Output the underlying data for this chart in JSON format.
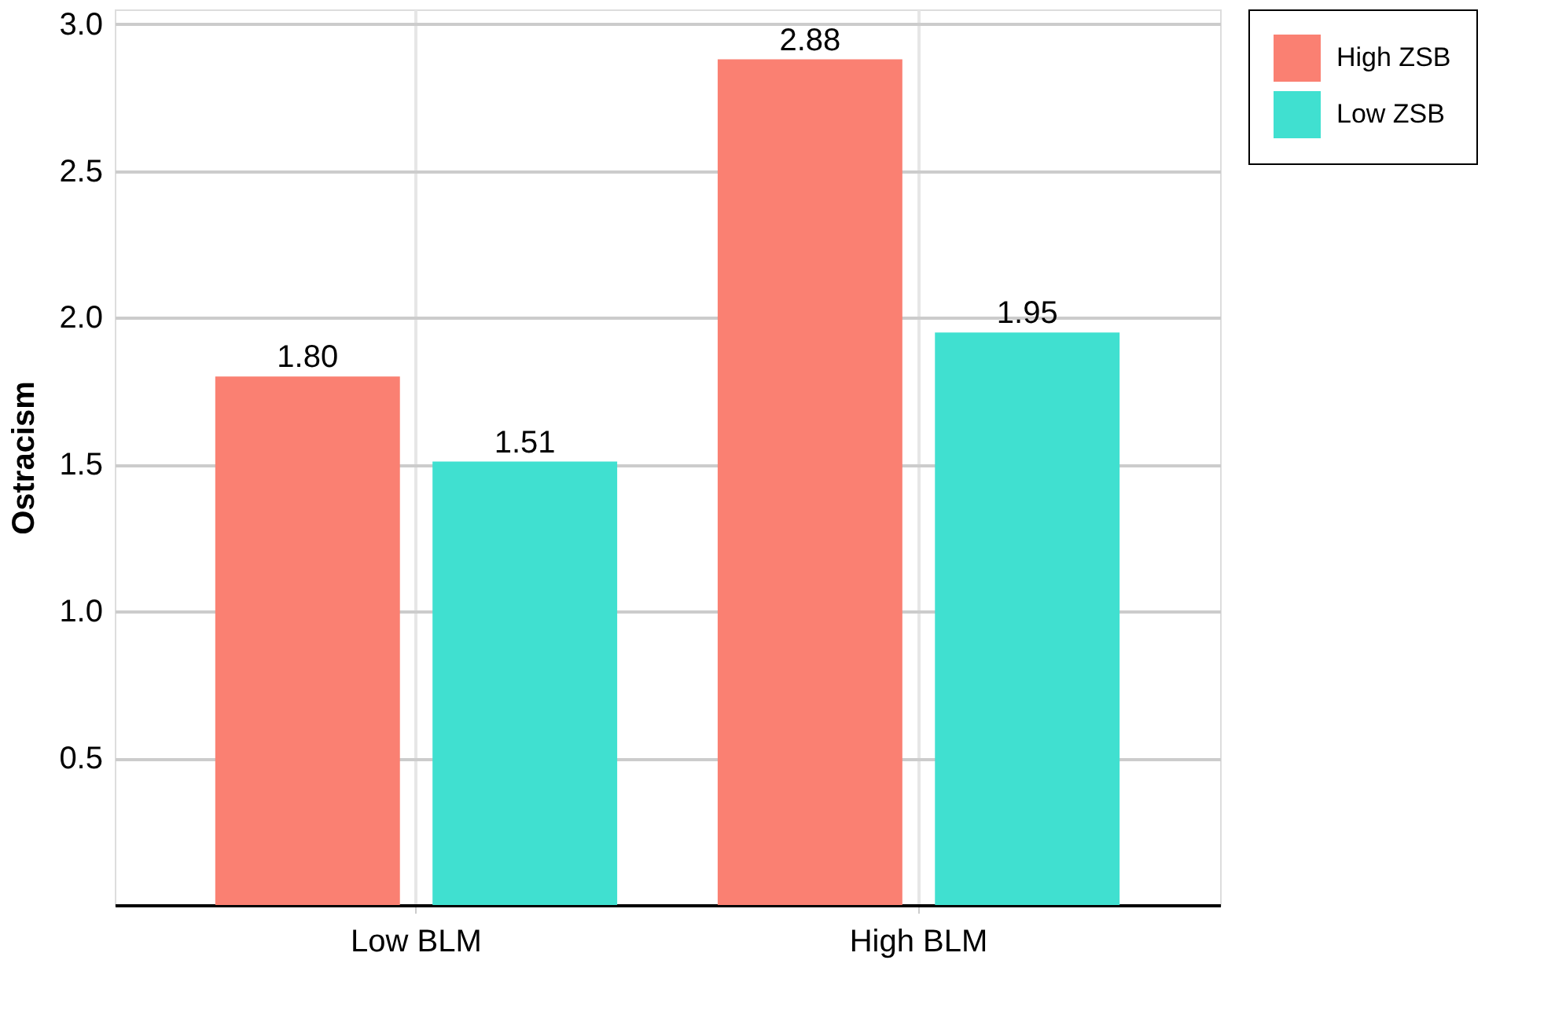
{
  "chart_data": {
    "type": "bar",
    "ylabel": "Ostracism",
    "categories": [
      "Low BLM",
      "High BLM"
    ],
    "series": [
      {
        "name": "High ZSB",
        "color": "#fa8072",
        "values": [
          1.8,
          2.88
        ],
        "value_labels": [
          "1.80",
          "2.88"
        ]
      },
      {
        "name": "Low ZSB",
        "color": "#40e0d0",
        "values": [
          1.51,
          1.95
        ],
        "value_labels": [
          "1.51",
          "1.95"
        ]
      }
    ],
    "ylim": [
      0,
      3.05
    ],
    "yticks": [
      {
        "value": 0.5,
        "label": "0.5"
      },
      {
        "value": 1,
        "label": "1.0"
      },
      {
        "value": 1.5,
        "label": "1.5"
      },
      {
        "value": 2,
        "label": "2.0"
      },
      {
        "value": 2.5,
        "label": "2.5"
      },
      {
        "value": 3,
        "label": "3.0"
      }
    ],
    "grid": true,
    "legend": "right"
  }
}
